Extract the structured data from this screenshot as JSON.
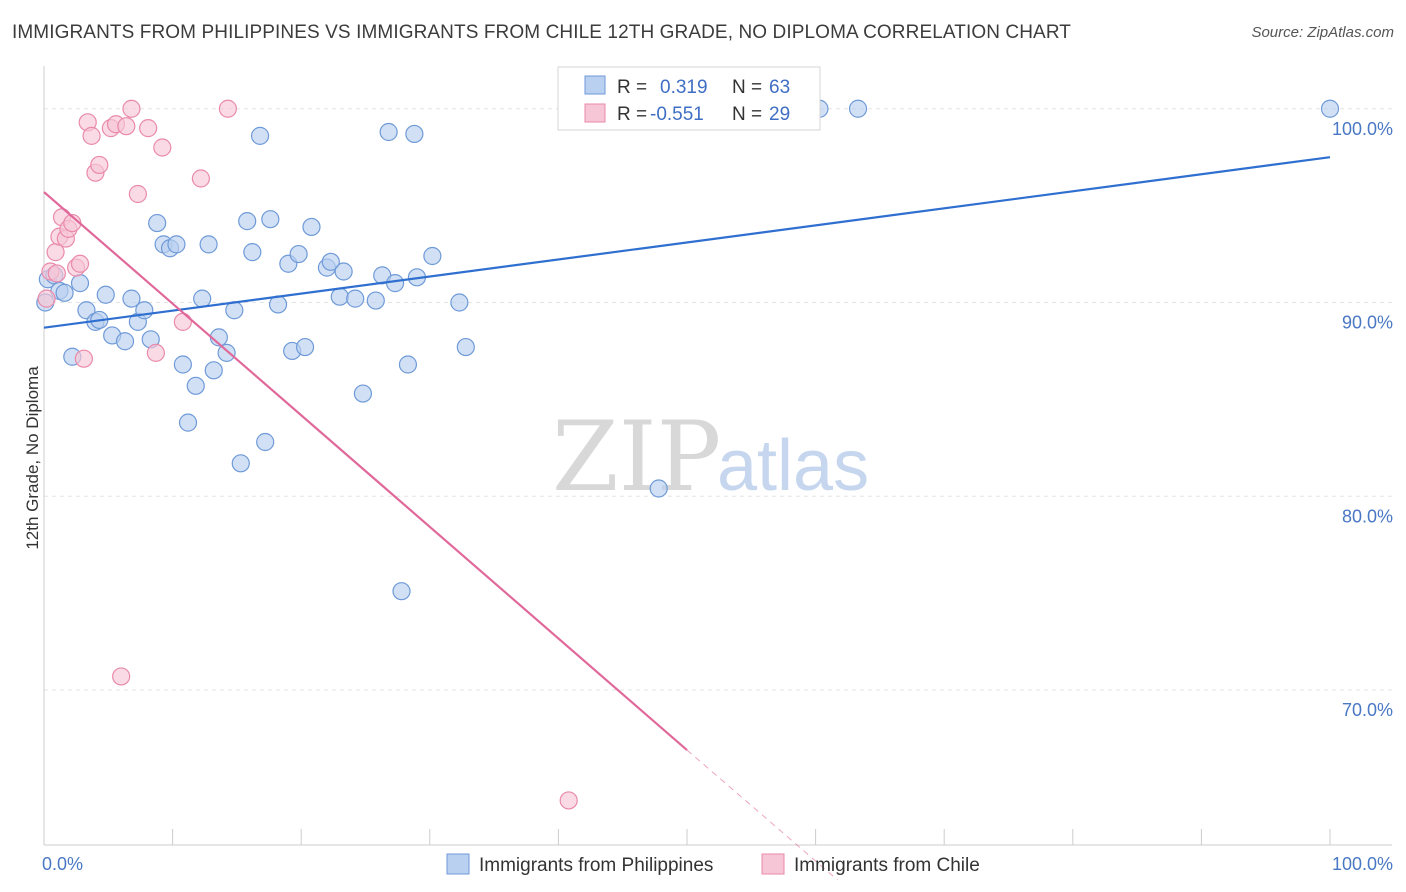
{
  "title": "IMMIGRANTS FROM PHILIPPINES VS IMMIGRANTS FROM CHILE 12TH GRADE, NO DIPLOMA CORRELATION CHART",
  "source": "Source: ZipAtlas.com",
  "watermark": {
    "zip": "ZIP",
    "atlas": "atlas"
  },
  "colors": {
    "blue_fill": "#b9d0f0",
    "blue_stroke": "#6f9ad8",
    "blue_line": "#2f6fd0",
    "pink_fill": "#f7c6d6",
    "pink_stroke": "#e98aab",
    "pink_line": "#e0689a",
    "grid": "#e3e3e3",
    "axis_text": "#4a78c4"
  },
  "legend": {
    "rows": [
      {
        "r_label": "R =",
        "r_value": "0.319",
        "n_label": "N =",
        "n_value": "63"
      },
      {
        "r_label": "R =",
        "r_value": "-0.551",
        "n_label": "N =",
        "n_value": "29"
      }
    ]
  },
  "chart_data": {
    "type": "scatter",
    "xlabel": "",
    "ylabel": "12th Grade, No Diploma",
    "xlim": [
      0,
      100
    ],
    "ylim": [
      62,
      102
    ],
    "x_tick_labels": [
      "0.0%",
      "100.0%"
    ],
    "y_ticks": [
      70,
      80,
      90,
      100
    ],
    "y_tick_labels": [
      "70.0%",
      "80.0%",
      "90.0%",
      "100.0%"
    ],
    "grid": true,
    "legend_position": "bottom",
    "series": [
      {
        "name": "Immigrants from Philippines",
        "color": "#6f9ad8",
        "trend": {
          "x": [
            0,
            100
          ],
          "y": [
            88.7,
            97.5
          ]
        },
        "points": [
          [
            0.3,
            91.2
          ],
          [
            0.8,
            91.4
          ],
          [
            1.2,
            90.6
          ],
          [
            1.6,
            90.5
          ],
          [
            2.2,
            87.2
          ],
          [
            2.8,
            91.0
          ],
          [
            3.3,
            89.6
          ],
          [
            4.0,
            89.0
          ],
          [
            4.3,
            89.1
          ],
          [
            4.8,
            90.4
          ],
          [
            5.3,
            88.3
          ],
          [
            6.3,
            88.0
          ],
          [
            6.8,
            90.2
          ],
          [
            7.3,
            89.0
          ],
          [
            7.8,
            89.6
          ],
          [
            8.3,
            88.1
          ],
          [
            8.8,
            94.1
          ],
          [
            9.3,
            93.0
          ],
          [
            9.8,
            92.8
          ],
          [
            10.3,
            93.0
          ],
          [
            10.8,
            86.8
          ],
          [
            11.2,
            83.8
          ],
          [
            11.8,
            85.7
          ],
          [
            12.3,
            90.2
          ],
          [
            12.8,
            93.0
          ],
          [
            13.2,
            86.5
          ],
          [
            13.6,
            88.2
          ],
          [
            14.2,
            87.4
          ],
          [
            14.8,
            89.6
          ],
          [
            15.3,
            81.7
          ],
          [
            15.8,
            94.2
          ],
          [
            16.2,
            92.6
          ],
          [
            16.8,
            98.6
          ],
          [
            17.2,
            82.8
          ],
          [
            17.6,
            94.3
          ],
          [
            18.2,
            89.9
          ],
          [
            19.0,
            92.0
          ],
          [
            19.3,
            87.5
          ],
          [
            19.8,
            92.5
          ],
          [
            20.3,
            87.7
          ],
          [
            20.8,
            93.9
          ],
          [
            22.0,
            91.8
          ],
          [
            22.3,
            92.1
          ],
          [
            23.0,
            90.3
          ],
          [
            23.3,
            91.6
          ],
          [
            24.2,
            90.2
          ],
          [
            24.8,
            85.3
          ],
          [
            25.8,
            90.1
          ],
          [
            26.3,
            91.4
          ],
          [
            26.8,
            98.8
          ],
          [
            27.3,
            91.0
          ],
          [
            27.8,
            75.1
          ],
          [
            28.3,
            86.8
          ],
          [
            28.8,
            98.7
          ],
          [
            29.0,
            91.3
          ],
          [
            30.2,
            92.4
          ],
          [
            32.3,
            90.0
          ],
          [
            32.8,
            87.7
          ],
          [
            47.8,
            80.4
          ],
          [
            60.3,
            100.0
          ],
          [
            63.3,
            100.0
          ],
          [
            100.0,
            100.0
          ],
          [
            0.1,
            90.0
          ]
        ]
      },
      {
        "name": "Immigrants from Chile",
        "color": "#e98aab",
        "trend": {
          "x": [
            0,
            50
          ],
          "y": [
            95.7,
            66.9
          ]
        },
        "trend_dashed": {
          "x": [
            50,
            61.7
          ],
          "y": [
            66.9,
            60.2
          ]
        },
        "points": [
          [
            0.2,
            90.2
          ],
          [
            0.5,
            91.6
          ],
          [
            0.9,
            92.6
          ],
          [
            1.2,
            93.4
          ],
          [
            1.4,
            94.4
          ],
          [
            1.7,
            93.3
          ],
          [
            1.9,
            93.8
          ],
          [
            2.2,
            94.1
          ],
          [
            2.5,
            91.8
          ],
          [
            2.8,
            92.0
          ],
          [
            3.1,
            87.1
          ],
          [
            3.4,
            99.3
          ],
          [
            3.7,
            98.6
          ],
          [
            4.0,
            96.7
          ],
          [
            4.3,
            97.1
          ],
          [
            5.2,
            99.0
          ],
          [
            5.6,
            99.2
          ],
          [
            6.0,
            70.7
          ],
          [
            6.4,
            99.1
          ],
          [
            6.8,
            100.0
          ],
          [
            7.3,
            95.6
          ],
          [
            8.1,
            99.0
          ],
          [
            8.7,
            87.4
          ],
          [
            9.2,
            98.0
          ],
          [
            10.8,
            89.0
          ],
          [
            12.2,
            96.4
          ],
          [
            14.3,
            100.0
          ],
          [
            40.8,
            64.3
          ],
          [
            1.0,
            91.5
          ]
        ]
      }
    ]
  }
}
